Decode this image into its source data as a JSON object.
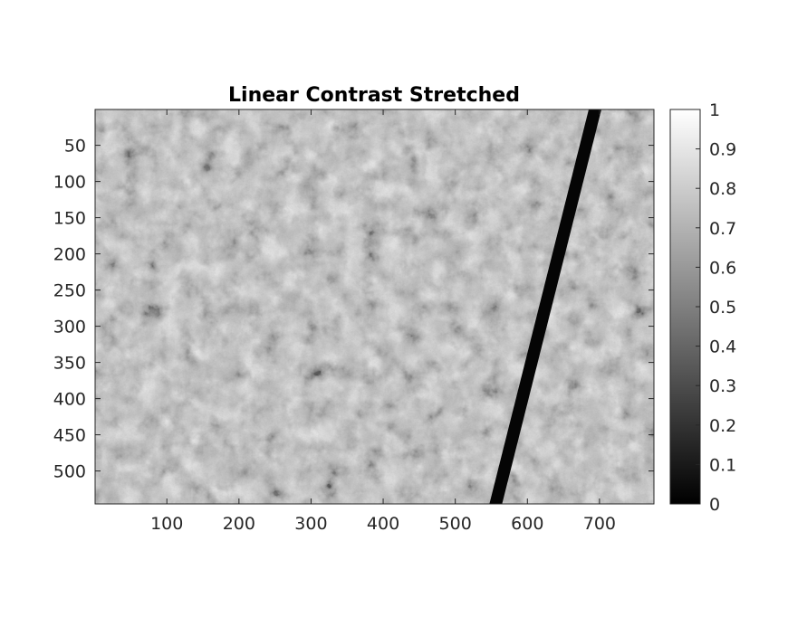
{
  "chart_data": {
    "type": "heatmap",
    "title": "Linear Contrast Stretched",
    "xlabel": "",
    "ylabel": "",
    "xlim": [
      0.5,
      775.5
    ],
    "ylim": [
      0.5,
      545.5
    ],
    "y_reversed": true,
    "xticks": [
      100,
      200,
      300,
      400,
      500,
      600,
      700
    ],
    "yticks": [
      50,
      100,
      150,
      200,
      250,
      300,
      350,
      400,
      450,
      500
    ],
    "colormap": "gray",
    "colorbar": {
      "limits": [
        0,
        1
      ],
      "ticks": [
        0,
        0.1,
        0.2,
        0.3,
        0.4,
        0.5,
        0.6,
        0.7,
        0.8,
        0.9,
        1
      ],
      "tick_labels": [
        "0",
        "0.1",
        "0.2",
        "0.3",
        "0.4",
        "0.5",
        "0.6",
        "0.7",
        "0.8",
        "0.9",
        "1"
      ]
    },
    "image_content": "grayscale electron micrograph of tissue with a dark diagonal stripe",
    "dark_stripe": {
      "top_x": 695,
      "top_y": 1,
      "bottom_x": 555,
      "bottom_y": 545,
      "value": 0
    },
    "grid": false
  }
}
